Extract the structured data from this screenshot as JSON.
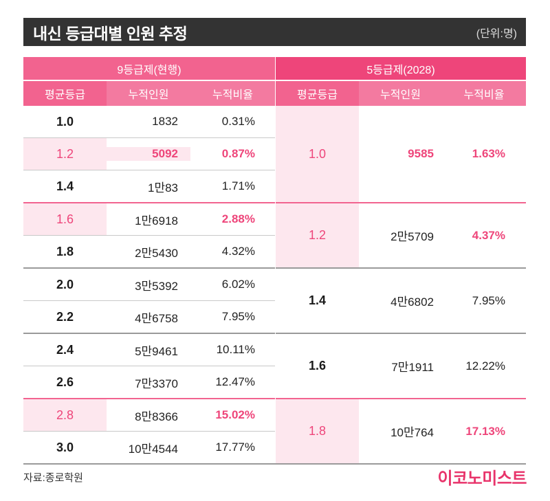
{
  "title": "내신 등급대별 인원 추정",
  "unit": "(단위:명)",
  "group_headers": {
    "left": "9등급제(현행)",
    "right": "5등급제(2028)"
  },
  "column_headers": {
    "left": [
      "평균등급",
      "누적인원",
      "누적비율"
    ],
    "right": [
      "평균등급",
      "누적인원",
      "누적비율"
    ]
  },
  "nine_grade_rows": [
    {
      "grade": "1.0",
      "count": "1832",
      "ratio": "0.31%"
    },
    {
      "grade": "1.2",
      "count": "5092",
      "ratio": "0.87%"
    },
    {
      "grade": "1.4",
      "count": "1만83",
      "ratio": "1.71%"
    },
    {
      "grade": "1.6",
      "count": "1만6918",
      "ratio": "2.88%"
    },
    {
      "grade": "1.8",
      "count": "2만5430",
      "ratio": "4.32%"
    },
    {
      "grade": "2.0",
      "count": "3만5392",
      "ratio": "6.02%"
    },
    {
      "grade": "2.2",
      "count": "4만6758",
      "ratio": "7.95%"
    },
    {
      "grade": "2.4",
      "count": "5만9461",
      "ratio": "10.11%"
    },
    {
      "grade": "2.6",
      "count": "7만3370",
      "ratio": "12.47%"
    },
    {
      "grade": "2.8",
      "count": "8만8366",
      "ratio": "15.02%"
    },
    {
      "grade": "3.0",
      "count": "10만4544",
      "ratio": "17.77%"
    }
  ],
  "five_grade_rows": [
    {
      "grade": "1.0",
      "count": "9585",
      "ratio": "1.63%"
    },
    {
      "grade": "1.2",
      "count": "2만5709",
      "ratio": "4.37%"
    },
    {
      "grade": "1.4",
      "count": "4만6802",
      "ratio": "7.95%"
    },
    {
      "grade": "1.6",
      "count": "7만1911",
      "ratio": "12.22%"
    },
    {
      "grade": "1.8",
      "count": "10만764",
      "ratio": "17.13%"
    }
  ],
  "source": "자료:종로학원",
  "logo": "이코노미스트",
  "colors": {
    "header_dark": "#333333",
    "accent_pink": "#ee457a",
    "header_pink": "#f2638f",
    "highlight_bg": "#fde7ee"
  }
}
